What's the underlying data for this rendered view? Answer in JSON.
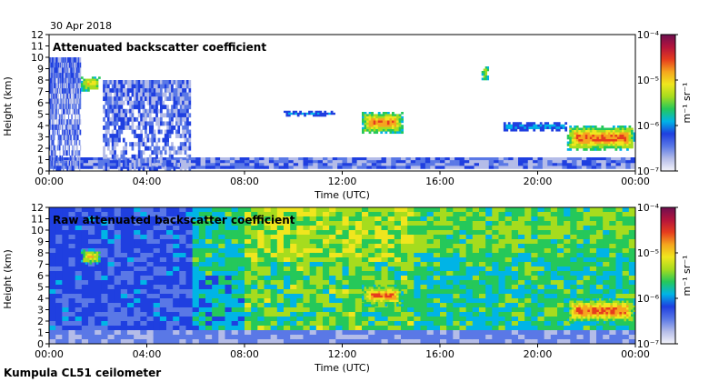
{
  "date": "30 Apr 2018",
  "footer": "Kumpula CL51 ceilometer",
  "colors": {
    "scale": [
      "#f4f4fa",
      "#b4bce8",
      "#5a78e6",
      "#1f3fe0",
      "#00b4e6",
      "#25c85a",
      "#a6dc1e",
      "#f0e61e",
      "#f5a51e",
      "#e63c1e",
      "#b4143c",
      "#6e0f50"
    ]
  },
  "chart_data": [
    {
      "type": "heatmap",
      "title": "Attenuated backscatter coefficient",
      "xlabel": "Time (UTC)",
      "ylabel": "Height (km)",
      "xlim": [
        "00:00",
        "24:00"
      ],
      "ylim": [
        0,
        12
      ],
      "x_ticks": [
        "00:00",
        "04:00",
        "08:00",
        "12:00",
        "16:00",
        "20:00",
        "00:00"
      ],
      "y_ticks": [
        "0",
        "1",
        "2",
        "3",
        "4",
        "5",
        "6",
        "7",
        "8",
        "9",
        "10",
        "11",
        "12"
      ],
      "colorbar": {
        "label": "m⁻¹ sr⁻¹",
        "min": "10⁻⁷",
        "max": "10⁻⁴",
        "scale": "log",
        "ticks": [
          "10⁻⁷",
          "10⁻⁶",
          "10⁻⁵",
          "10⁻⁴"
        ]
      },
      "grid": false,
      "features": [
        {
          "kind": "boundary_layer",
          "time_start": 0.0,
          "time_end": 24.0,
          "height_km": [
            0.2,
            1.2
          ]
        },
        {
          "kind": "noise_column",
          "time_start": 0.0,
          "time_end": 1.3,
          "height_km": [
            0.0,
            10.0
          ]
        },
        {
          "kind": "noise_column",
          "time_start": 2.2,
          "time_end": 5.8,
          "height_km": [
            0.0,
            8.0
          ]
        },
        {
          "kind": "cloud",
          "time_start": 1.3,
          "time_end": 2.1,
          "height_km": [
            7.0,
            8.3
          ],
          "level": "1e-5"
        },
        {
          "kind": "cloud",
          "time_start": 9.6,
          "time_end": 11.8,
          "height_km": [
            4.8,
            5.3
          ],
          "level": "3e-6"
        },
        {
          "kind": "cloud",
          "time_start": 12.8,
          "time_end": 14.5,
          "height_km": [
            3.3,
            5.2
          ],
          "level": "1e-5"
        },
        {
          "kind": "cloud",
          "time_start": 17.7,
          "time_end": 18.0,
          "height_km": [
            8.0,
            9.2
          ],
          "level": "1e-5"
        },
        {
          "kind": "cloud",
          "time_start": 18.6,
          "time_end": 21.2,
          "height_km": [
            3.5,
            4.3
          ],
          "level": "2e-6"
        },
        {
          "kind": "cloud",
          "time_start": 21.2,
          "time_end": 24.0,
          "height_km": [
            1.8,
            4.0
          ],
          "level": "1e-5"
        }
      ]
    },
    {
      "type": "heatmap",
      "title": "Raw attenuated backscatter coefficient",
      "xlabel": "Time (UTC)",
      "ylabel": "Height (km)",
      "xlim": [
        "00:00",
        "24:00"
      ],
      "ylim": [
        0,
        12
      ],
      "x_ticks": [
        "00:00",
        "04:00",
        "08:00",
        "12:00",
        "16:00",
        "20:00",
        "00:00"
      ],
      "y_ticks": [
        "0",
        "1",
        "2",
        "3",
        "4",
        "5",
        "6",
        "7",
        "8",
        "9",
        "10",
        "11",
        "12"
      ],
      "colorbar": {
        "label": "m⁻¹ sr⁻¹",
        "min": "10⁻⁷",
        "max": "10⁻⁴",
        "scale": "log",
        "ticks": [
          "10⁻⁷",
          "10⁻⁶",
          "10⁻⁵",
          "10⁻⁴"
        ]
      },
      "grid": false,
      "features": [
        {
          "kind": "noise_background",
          "time_start": 0.0,
          "time_end": 24.0,
          "height_km": [
            0.0,
            12.0
          ]
        },
        {
          "kind": "cloud",
          "time_start": 1.3,
          "time_end": 2.1,
          "height_km": [
            7.0,
            8.3
          ],
          "level": "1e-5"
        },
        {
          "kind": "cloud",
          "time_start": 12.8,
          "time_end": 14.5,
          "height_km": [
            3.3,
            5.2
          ],
          "level": "1e-5"
        },
        {
          "kind": "cloud",
          "time_start": 21.2,
          "time_end": 24.0,
          "height_km": [
            1.8,
            4.0
          ],
          "level": "1e-5"
        }
      ]
    }
  ]
}
